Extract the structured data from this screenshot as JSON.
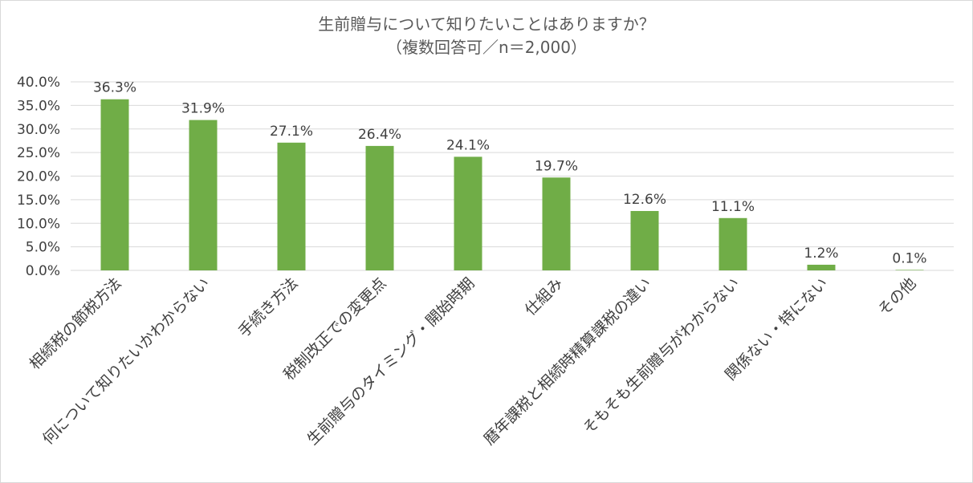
{
  "chart_data": {
    "type": "bar",
    "title": "生前贈与について知りたいことはありますか？",
    "subtitle": "（複数回答可／n＝2,000）",
    "categories": [
      "相続税の節税方法",
      "何について知りたいかわからない",
      "手続き方法",
      "税制改正での変更点",
      "生前贈与のタイミング・開始時期",
      "仕組み",
      "暦年課税と相続時精算課税の違い",
      "そもそも生前贈与がわからない",
      "関係ない・特にない",
      "その他"
    ],
    "values": [
      36.3,
      31.9,
      27.1,
      26.4,
      24.1,
      19.7,
      12.6,
      11.1,
      1.2,
      0.1
    ],
    "data_labels": [
      "36.3%",
      "31.9%",
      "27.1%",
      "26.4%",
      "24.1%",
      "19.7%",
      "12.6%",
      "11.1%",
      "1.2%",
      "0.1%"
    ],
    "ylim": [
      0,
      40
    ],
    "yticks": [
      "0.0%",
      "5.0%",
      "10.0%",
      "15.0%",
      "20.0%",
      "25.0%",
      "30.0%",
      "35.0%",
      "40.0%"
    ],
    "xlabel": "",
    "ylabel": "",
    "grid": true,
    "legend": "none",
    "colors": {
      "bar": "#70ad47",
      "grid": "#d9d9d9",
      "text": "#404040",
      "title": "#595959"
    }
  }
}
